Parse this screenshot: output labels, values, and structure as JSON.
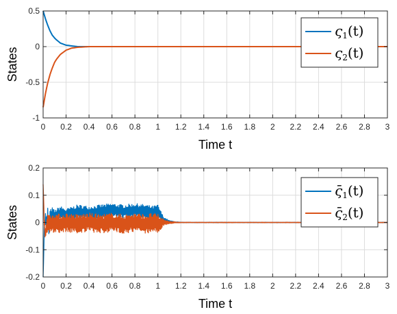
{
  "chart_data": [
    {
      "type": "line",
      "xlabel": "Time t",
      "ylabel": "States",
      "xlim": [
        0,
        3
      ],
      "ylim": [
        -1,
        0.5
      ],
      "xticks": [
        "0",
        "0.2",
        "0.4",
        "0.6",
        "0.8",
        "1",
        "1.2",
        "1.4",
        "1.6",
        "1.8",
        "2",
        "2.2",
        "2.4",
        "2.6",
        "2.8",
        "3"
      ],
      "yticks": [
        "0.5",
        "0",
        "-0.5",
        "-1"
      ],
      "grid": true,
      "legend_position": "top-right",
      "series": [
        {
          "legend": {
            "base": "ς",
            "sub": "1",
            "arg": "(t)"
          },
          "color": "#0072BD",
          "x": [
            0,
            0.02,
            0.04,
            0.06,
            0.08,
            0.1,
            0.12,
            0.15,
            0.2,
            0.25,
            0.3,
            0.4,
            3
          ],
          "y": [
            0.5,
            0.39,
            0.3,
            0.22,
            0.16,
            0.12,
            0.09,
            0.05,
            0.02,
            0.01,
            0,
            0,
            0
          ]
        },
        {
          "legend": {
            "base": "ς",
            "sub": "2",
            "arg": "(t)"
          },
          "color": "#D95319",
          "x": [
            0,
            0.02,
            0.04,
            0.06,
            0.08,
            0.1,
            0.12,
            0.15,
            0.2,
            0.25,
            0.3,
            0.4,
            3
          ],
          "y": [
            -0.85,
            -0.66,
            -0.51,
            -0.39,
            -0.3,
            -0.22,
            -0.17,
            -0.11,
            -0.05,
            -0.02,
            -0.01,
            0,
            0
          ]
        }
      ]
    },
    {
      "type": "line",
      "xlabel": "Time t",
      "ylabel": "States",
      "xlim": [
        0,
        3
      ],
      "ylim": [
        -0.2,
        0.2
      ],
      "xticks": [
        "0",
        "0.2",
        "0.4",
        "0.6",
        "0.8",
        "1",
        "1.2",
        "1.4",
        "1.6",
        "1.8",
        "2",
        "2.2",
        "2.4",
        "2.6",
        "2.8",
        "3"
      ],
      "yticks": [
        "0.2",
        "0.1",
        "0",
        "-0.1",
        "-0.2"
      ],
      "grid": true,
      "legend_position": "top-right",
      "series": [
        {
          "legend": {
            "base": "ς̄",
            "sub": "1",
            "arg": "(t)"
          },
          "color": "#0072BD",
          "x": [
            0,
            0.005,
            0.01,
            0.02,
            0.03,
            0.04,
            0.05,
            0.06,
            0.08,
            0.1,
            0.15,
            0.2,
            0.3,
            0.4,
            0.5,
            0.6,
            0.7,
            0.8,
            0.9,
            0.95,
            1.0,
            1.05,
            1.1,
            1.15,
            1.2,
            3
          ],
          "y": [
            -0.2,
            -0.12,
            -0.03,
            0.02,
            -0.01,
            0.03,
            -0.02,
            0.02,
            0.03,
            0.02,
            0.035,
            0.025,
            0.04,
            0.035,
            0.04,
            0.045,
            0.04,
            0.045,
            0.04,
            0.035,
            0.04,
            0.01,
            0.003,
            0.001,
            0,
            0
          ],
          "oscillation_amplitude": [
            0,
            0,
            0,
            0.02,
            0.025,
            0.025,
            0.025,
            0.025,
            0.025,
            0.025,
            0.025,
            0.025,
            0.025,
            0.025,
            0.025,
            0.025,
            0.025,
            0.025,
            0.025,
            0.025,
            0.025,
            0.01,
            0.004,
            0.002,
            0.001,
            0.001
          ]
        },
        {
          "legend": {
            "base": "ς̄",
            "sub": "2",
            "arg": "(t)"
          },
          "color": "#D95319",
          "x": [
            0,
            0.005,
            0.01,
            0.02,
            0.03,
            0.04,
            0.05,
            0.06,
            0.08,
            0.1,
            0.15,
            0.2,
            0.3,
            0.4,
            0.5,
            0.6,
            0.7,
            0.8,
            0.9,
            0.95,
            1.0,
            1.05,
            1.1,
            1.15,
            1.2,
            3
          ],
          "y": [
            0.14,
            0.08,
            0.0,
            -0.04,
            -0.02,
            0.0,
            -0.01,
            0.0,
            -0.005,
            0.0,
            -0.005,
            0.0,
            -0.005,
            0.0,
            -0.005,
            0.0,
            -0.005,
            0.0,
            -0.005,
            0.0,
            -0.005,
            0.0,
            0.0,
            0.0,
            0.0,
            0.0
          ],
          "oscillation_amplitude": [
            0,
            0,
            0.02,
            0.03,
            0.035,
            0.035,
            0.035,
            0.035,
            0.035,
            0.035,
            0.035,
            0.035,
            0.035,
            0.035,
            0.035,
            0.035,
            0.035,
            0.035,
            0.035,
            0.035,
            0.035,
            0.012,
            0.005,
            0.002,
            0.001,
            0.001
          ]
        }
      ]
    }
  ]
}
